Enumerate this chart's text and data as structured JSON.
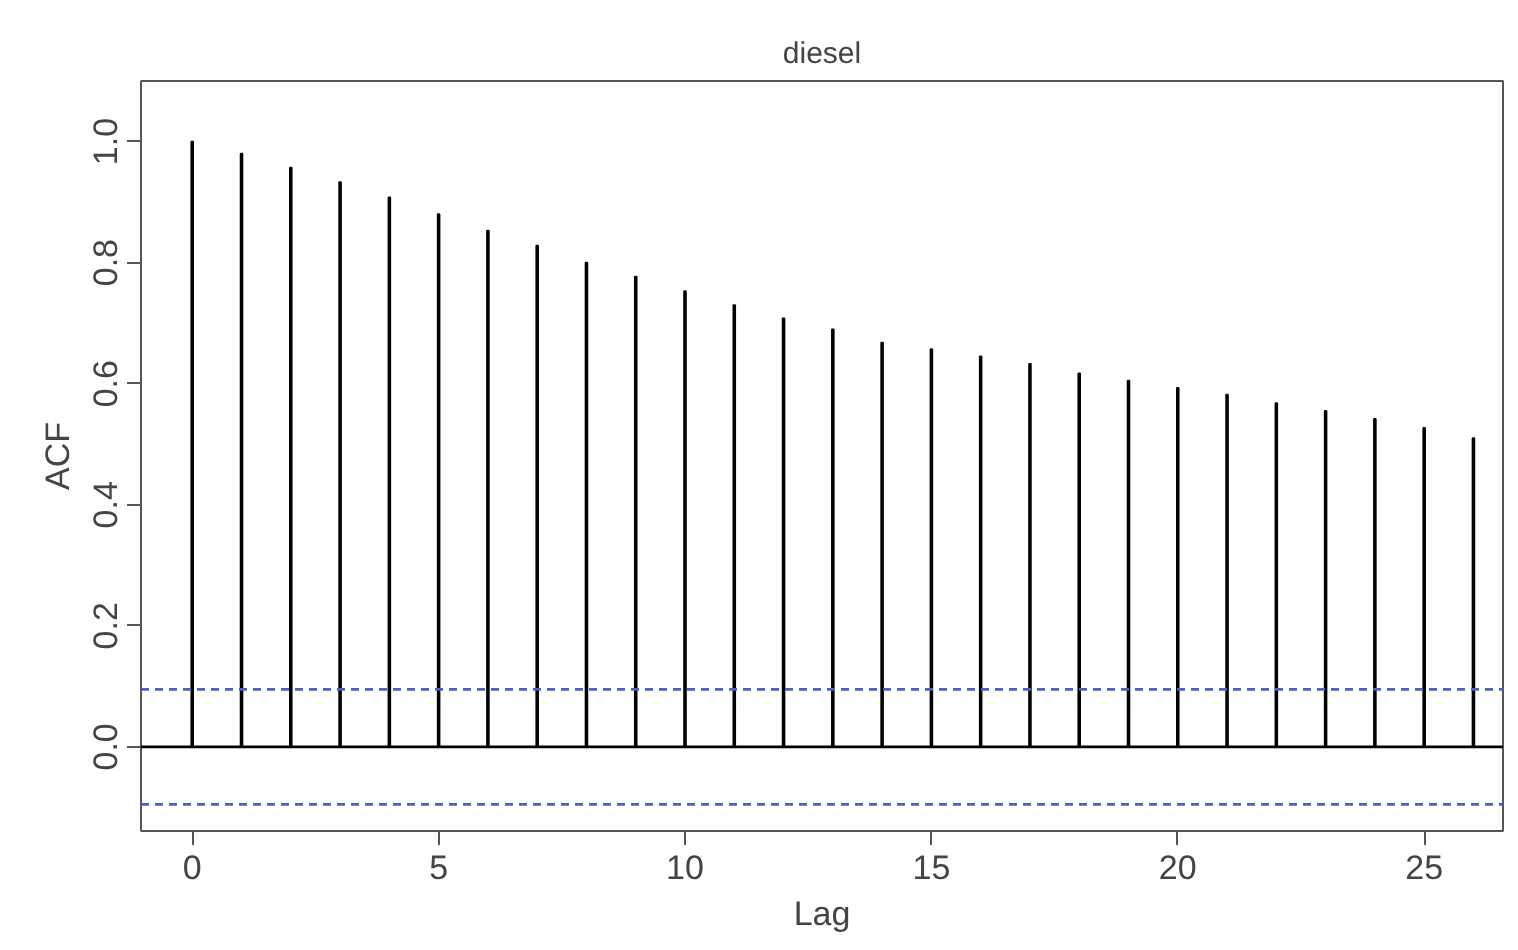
{
  "chart_data": {
    "type": "bar",
    "title": "diesel",
    "xlabel": "Lag",
    "ylabel": "ACF",
    "x": [
      0,
      1,
      2,
      3,
      4,
      5,
      6,
      7,
      8,
      9,
      10,
      11,
      12,
      13,
      14,
      15,
      16,
      17,
      18,
      19,
      20,
      21,
      22,
      23,
      24,
      25,
      26
    ],
    "values": [
      1.0,
      0.98,
      0.957,
      0.933,
      0.908,
      0.88,
      0.853,
      0.828,
      0.8,
      0.777,
      0.753,
      0.73,
      0.708,
      0.69,
      0.668,
      0.657,
      0.645,
      0.633,
      0.617,
      0.605,
      0.593,
      0.582,
      0.568,
      0.555,
      0.542,
      0.527,
      0.51
    ],
    "color": "#000000",
    "xlim": [
      -1.04,
      26.6
    ],
    "ylim": [
      -0.139,
      1.1
    ],
    "xticks": [
      0,
      5,
      10,
      15,
      20,
      25
    ],
    "yticks": [
      {
        "value": 0,
        "label": "0.0"
      },
      0.2,
      0.4,
      0.6,
      0.8,
      {
        "value": 1,
        "label": "1.0"
      }
    ],
    "ref_lines": [
      {
        "axis": "y",
        "value": 0,
        "color": "#000000",
        "line_style": "solid"
      },
      {
        "axis": "y",
        "value": 0.095,
        "color": "#4f5fc0",
        "line_style": "dashed"
      },
      {
        "axis": "y",
        "value": -0.095,
        "color": "#4f5fc0",
        "line_style": "dashed"
      }
    ],
    "grid": false
  }
}
